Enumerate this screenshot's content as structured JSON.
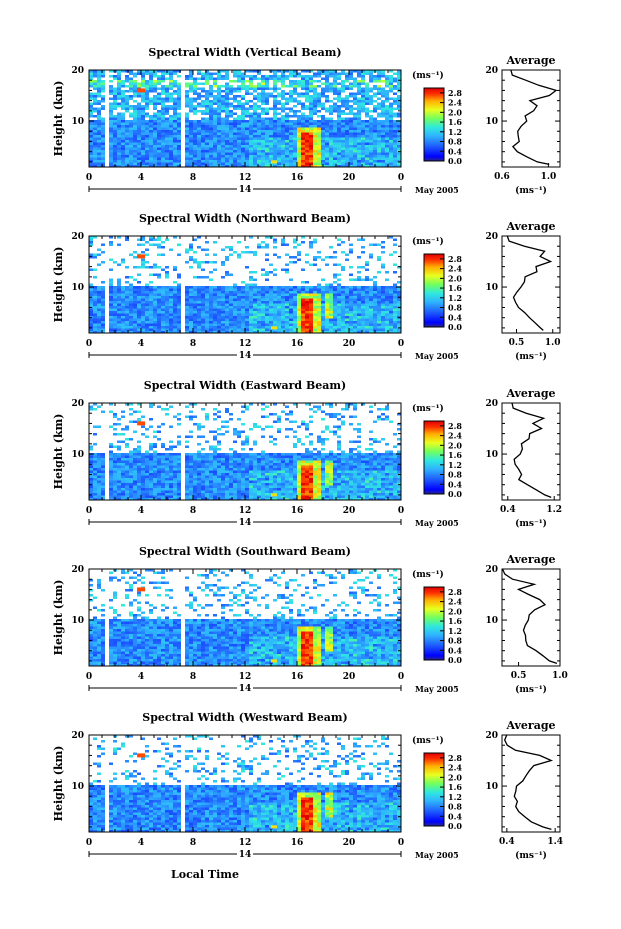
{
  "figure": {
    "xlabel": "Local Time",
    "day_label": "14",
    "month_label": "May 2005",
    "height_axis_label": "Height (km)",
    "colorbar_unit": "(ms⁻¹)",
    "avg_title": "Average",
    "avg_xunit": "(ms⁻¹)"
  },
  "chart_data": [
    {
      "type": "heatmap",
      "title": "Spectral Width (Vertical Beam)",
      "xlabel": "",
      "ylabel": "Height (km)",
      "x_ticks": [
        "0",
        "4",
        "8",
        "12",
        "16",
        "20",
        "0"
      ],
      "xlim": [
        0,
        24
      ],
      "y_ticks": [
        "10",
        "20"
      ],
      "ylim": [
        1,
        20
      ],
      "colorbar_ticks": [
        "0.0",
        "0.4",
        "0.8",
        "1.2",
        "1.6",
        "2.0",
        "2.4",
        "2.8"
      ],
      "colorbar_range": [
        0,
        3.0
      ],
      "data_gaps_hours": [
        [
          1.1,
          1.4
        ],
        [
          6.9,
          7.2
        ]
      ],
      "avg_profile": {
        "xlim": [
          0.6,
          1.1
        ],
        "x_ticks": [
          "0.6",
          "1.0"
        ],
        "x_tick_values": [
          0.6,
          1.0
        ],
        "heights": [
          1.5,
          2,
          3,
          4,
          5,
          6,
          7,
          8,
          9,
          10,
          11,
          12,
          13,
          14,
          15,
          16,
          17,
          18,
          19,
          20
        ],
        "values": [
          1.02,
          0.9,
          0.8,
          0.72,
          0.7,
          0.74,
          0.76,
          0.73,
          0.75,
          0.8,
          0.78,
          0.86,
          0.92,
          0.85,
          1.0,
          1.05,
          0.9,
          0.8,
          0.7,
          0.67
        ]
      }
    },
    {
      "type": "heatmap",
      "title": "Spectral Width (Northward Beam)",
      "xlabel": "",
      "ylabel": "Height (km)",
      "x_ticks": [
        "0",
        "4",
        "8",
        "12",
        "16",
        "20",
        "0"
      ],
      "xlim": [
        0,
        24
      ],
      "y_ticks": [
        "10",
        "20"
      ],
      "ylim": [
        1,
        20
      ],
      "colorbar_ticks": [
        "0.0",
        "0.4",
        "0.8",
        "1.2",
        "1.6",
        "2.0",
        "2.4",
        "2.8"
      ],
      "colorbar_range": [
        0,
        3.0
      ],
      "data_gaps_hours": [
        [
          1.1,
          1.4
        ],
        [
          7.0,
          7.3
        ]
      ],
      "avg_profile": {
        "xlim": [
          0.3,
          1.1
        ],
        "x_ticks": [
          "0.5",
          "1.0"
        ],
        "x_tick_values": [
          0.5,
          1.0
        ],
        "heights": [
          1.5,
          2,
          3,
          4,
          5,
          6,
          7,
          8,
          9,
          10,
          11,
          12,
          13,
          14,
          15,
          16,
          17,
          18,
          19,
          20
        ],
        "values": [
          0.9,
          0.85,
          0.75,
          0.65,
          0.6,
          0.55,
          0.5,
          0.45,
          0.5,
          0.55,
          0.6,
          0.65,
          0.75,
          0.8,
          0.95,
          0.85,
          0.9,
          0.6,
          0.4,
          0.35
        ]
      }
    },
    {
      "type": "heatmap",
      "title": "Spectral Width (Eastward Beam)",
      "xlabel": "",
      "ylabel": "Height (km)",
      "x_ticks": [
        "0",
        "4",
        "8",
        "12",
        "16",
        "20",
        "0"
      ],
      "xlim": [
        0,
        24
      ],
      "y_ticks": [
        "10",
        "20"
      ],
      "ylim": [
        1,
        20
      ],
      "colorbar_ticks": [
        "0.0",
        "0.4",
        "0.8",
        "1.2",
        "1.6",
        "2.0",
        "2.4",
        "2.8"
      ],
      "colorbar_range": [
        0,
        3.0
      ],
      "data_gaps_hours": [
        [
          1.1,
          1.4
        ],
        [
          7.0,
          7.3
        ]
      ],
      "avg_profile": {
        "xlim": [
          0.3,
          1.3
        ],
        "x_ticks": [
          "0.4",
          "1.2"
        ],
        "x_tick_values": [
          0.4,
          1.2
        ],
        "heights": [
          1.5,
          2,
          3,
          4,
          5,
          6,
          7,
          8,
          9,
          10,
          11,
          12,
          13,
          14,
          15,
          16,
          17,
          18,
          19,
          20
        ],
        "values": [
          1.15,
          1.0,
          0.85,
          0.7,
          0.62,
          0.6,
          0.58,
          0.55,
          0.55,
          0.6,
          0.62,
          0.65,
          0.75,
          0.8,
          1.0,
          0.8,
          1.0,
          0.7,
          0.5,
          0.45
        ]
      }
    },
    {
      "type": "heatmap",
      "title": "Spectral Width (Southward Beam)",
      "xlabel": "",
      "ylabel": "Height (km)",
      "x_ticks": [
        "0",
        "4",
        "8",
        "12",
        "16",
        "20",
        "0"
      ],
      "xlim": [
        0,
        24
      ],
      "y_ticks": [
        "10",
        "20"
      ],
      "ylim": [
        1,
        20
      ],
      "colorbar_ticks": [
        "0.0",
        "0.4",
        "0.8",
        "1.2",
        "1.6",
        "2.0",
        "2.4",
        "2.8"
      ],
      "colorbar_range": [
        0,
        3.0
      ],
      "data_gaps_hours": [
        [
          1.1,
          1.4
        ],
        [
          7.0,
          7.3
        ]
      ],
      "avg_profile": {
        "xlim": [
          0.3,
          1.0
        ],
        "x_ticks": [
          "0.5",
          "1.0"
        ],
        "x_tick_values": [
          0.5,
          1.0
        ],
        "heights": [
          1.5,
          2,
          3,
          4,
          5,
          6,
          7,
          8,
          9,
          10,
          11,
          12,
          13,
          14,
          15,
          16,
          17,
          18,
          19,
          20
        ],
        "values": [
          0.98,
          0.9,
          0.8,
          0.7,
          0.63,
          0.6,
          0.58,
          0.56,
          0.56,
          0.6,
          0.65,
          0.7,
          0.8,
          0.75,
          0.6,
          0.5,
          0.7,
          0.45,
          0.35,
          0.32
        ]
      }
    },
    {
      "type": "heatmap",
      "title": "Spectral Width (Westward Beam)",
      "xlabel": "Local Time",
      "ylabel": "Height (km)",
      "x_ticks": [
        "0",
        "4",
        "8",
        "12",
        "16",
        "20",
        "0"
      ],
      "xlim": [
        0,
        24
      ],
      "y_ticks": [
        "10",
        "20"
      ],
      "ylim": [
        1,
        20
      ],
      "colorbar_ticks": [
        "0.0",
        "0.4",
        "0.8",
        "1.2",
        "1.6",
        "2.0",
        "2.4",
        "2.8"
      ],
      "colorbar_range": [
        0,
        3.0
      ],
      "data_gaps_hours": [
        [
          1.1,
          1.4
        ],
        [
          7.0,
          7.3
        ]
      ],
      "avg_profile": {
        "xlim": [
          0.3,
          1.5
        ],
        "x_ticks": [
          "0.4",
          "1.4"
        ],
        "x_tick_values": [
          0.4,
          1.4
        ],
        "heights": [
          1.5,
          2,
          3,
          4,
          5,
          6,
          7,
          8,
          9,
          10,
          11,
          12,
          13,
          14,
          15,
          16,
          17,
          18,
          19,
          20
        ],
        "values": [
          1.3,
          1.15,
          0.9,
          0.75,
          0.68,
          0.62,
          0.6,
          0.58,
          0.58,
          0.62,
          0.7,
          0.8,
          0.9,
          1.0,
          1.3,
          1.1,
          0.6,
          0.45,
          0.4,
          0.38
        ]
      }
    }
  ]
}
